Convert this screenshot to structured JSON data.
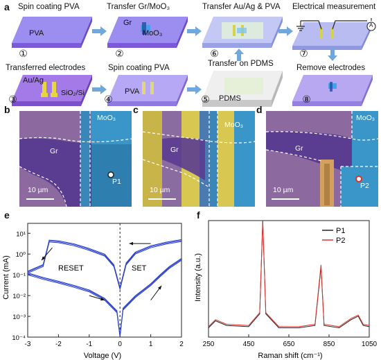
{
  "panel_a": {
    "letter": "a",
    "steps": [
      {
        "num": "①",
        "title": "Spin coating PVA",
        "label": "PVA"
      },
      {
        "num": "②",
        "title": "Transfer Gr/MoO₃",
        "label_gr": "Gr",
        "label_moo3": "MoO₃"
      },
      {
        "num": "⑥",
        "title": "Transfer Au/Ag & PVA"
      },
      {
        "num": "⑦",
        "title": "Electrical measurement",
        "label_a": "A"
      },
      {
        "num": "③",
        "title": "Transferred electrodes",
        "label_auag": "Au/Ag",
        "label_sio2": "SiO₂/Si"
      },
      {
        "num": "④",
        "title": "Spin coating PVA",
        "label": "PVA"
      },
      {
        "num": "⑤",
        "title": "Transfer on PDMS",
        "label": "PDMS"
      },
      {
        "num": "⑧",
        "title": "Remove electrodes"
      }
    ]
  },
  "panel_b": {
    "letter": "b",
    "gr": "Gr",
    "moo3": "MoO₃",
    "point": "P1",
    "scale": "10 µm"
  },
  "panel_c": {
    "letter": "c",
    "gr": "Gr",
    "moo3": "MoO₃",
    "scale": "10 µm"
  },
  "panel_d": {
    "letter": "d",
    "gr": "Gr",
    "moo3": "MoO₃",
    "point": "P2",
    "scale": "10 µm"
  },
  "panel_e": {
    "letter": "e",
    "xlabel": "Voltage (V)",
    "ylabel": "Current (mA)",
    "xticks": [
      "-3",
      "-2",
      "-1",
      "0",
      "1",
      "2"
    ],
    "yticks": [
      "10¹",
      "10⁰",
      "10⁻¹",
      "10⁻²",
      "10⁻³",
      "10⁻⁴"
    ],
    "reset_label": "RESET",
    "set_label": "SET",
    "line_color": "#2a3fc8"
  },
  "panel_f": {
    "letter": "f",
    "xlabel": "Raman shift (cm⁻¹)",
    "ylabel": "Intensity (a.u.)",
    "xticks": [
      "250",
      "450",
      "650",
      "850",
      "1050"
    ],
    "legend": [
      {
        "name": "P1",
        "color": "#222222"
      },
      {
        "name": "P2",
        "color": "#e0302a"
      }
    ]
  },
  "chart_data": [
    {
      "type": "line",
      "title": "",
      "xlabel": "Voltage (V)",
      "ylabel": "Current (mA)",
      "xlim": [
        -3,
        2
      ],
      "ylim": [
        0.0001,
        30
      ],
      "yscale": "log",
      "annotations": [
        "RESET",
        "SET"
      ],
      "series": [
        {
          "values": [
            [
              -3,
              0.1
            ],
            [
              -2.5,
              0.06
            ],
            [
              -2,
              0.04
            ],
            [
              -1.5,
              0.025
            ],
            [
              -1,
              0.015
            ],
            [
              -0.5,
              0.006
            ],
            [
              -0.1,
              0.0015
            ],
            [
              0,
              0.0001
            ],
            [
              0.1,
              0.002
            ],
            [
              0.5,
              0.008
            ],
            [
              1,
              0.03
            ],
            [
              1.3,
              0.08
            ],
            [
              1.6,
              0.2
            ],
            [
              2,
              0.5
            ]
          ]
        },
        {
          "values": [
            [
              2,
              4
            ],
            [
              1.5,
              3
            ],
            [
              1,
              2
            ],
            [
              0.5,
              1
            ],
            [
              0.2,
              0.3
            ],
            [
              0,
              0.02
            ],
            [
              -0.2,
              0.25
            ],
            [
              -0.5,
              0.8
            ],
            [
              -1,
              1.5
            ],
            [
              -1.5,
              2.5
            ],
            [
              -2,
              3.5
            ],
            [
              -2.3,
              3.8
            ],
            [
              -2.5,
              0.25
            ],
            [
              -3,
              0.12
            ]
          ]
        }
      ]
    },
    {
      "type": "line",
      "title": "",
      "xlabel": "Raman shift (cm⁻¹)",
      "ylabel": "Intensity (a.u.)",
      "xlim": [
        250,
        1050
      ],
      "series": [
        {
          "name": "P1",
          "values": [
            [
              250,
              0.08
            ],
            [
              285,
              0.14
            ],
            [
              340,
              0.1
            ],
            [
              450,
              0.09
            ],
            [
              505,
              0.2
            ],
            [
              520,
              1.0
            ],
            [
              535,
              0.2
            ],
            [
              600,
              0.08
            ],
            [
              700,
              0.08
            ],
            [
              780,
              0.1
            ],
            [
              810,
              0.6
            ],
            [
              825,
              0.1
            ],
            [
              900,
              0.08
            ],
            [
              960,
              0.15
            ],
            [
              995,
              0.18
            ],
            [
              1020,
              0.1
            ],
            [
              1050,
              0.09
            ]
          ]
        },
        {
          "name": "P2",
          "values": [
            [
              250,
              0.09
            ],
            [
              285,
              0.15
            ],
            [
              340,
              0.11
            ],
            [
              450,
              0.1
            ],
            [
              505,
              0.21
            ],
            [
              520,
              1.0
            ],
            [
              535,
              0.21
            ],
            [
              600,
              0.09
            ],
            [
              700,
              0.09
            ],
            [
              780,
              0.11
            ],
            [
              810,
              0.62
            ],
            [
              825,
              0.11
            ],
            [
              900,
              0.09
            ],
            [
              960,
              0.16
            ],
            [
              995,
              0.19
            ],
            [
              1020,
              0.11
            ],
            [
              1050,
              0.1
            ]
          ]
        }
      ]
    }
  ]
}
